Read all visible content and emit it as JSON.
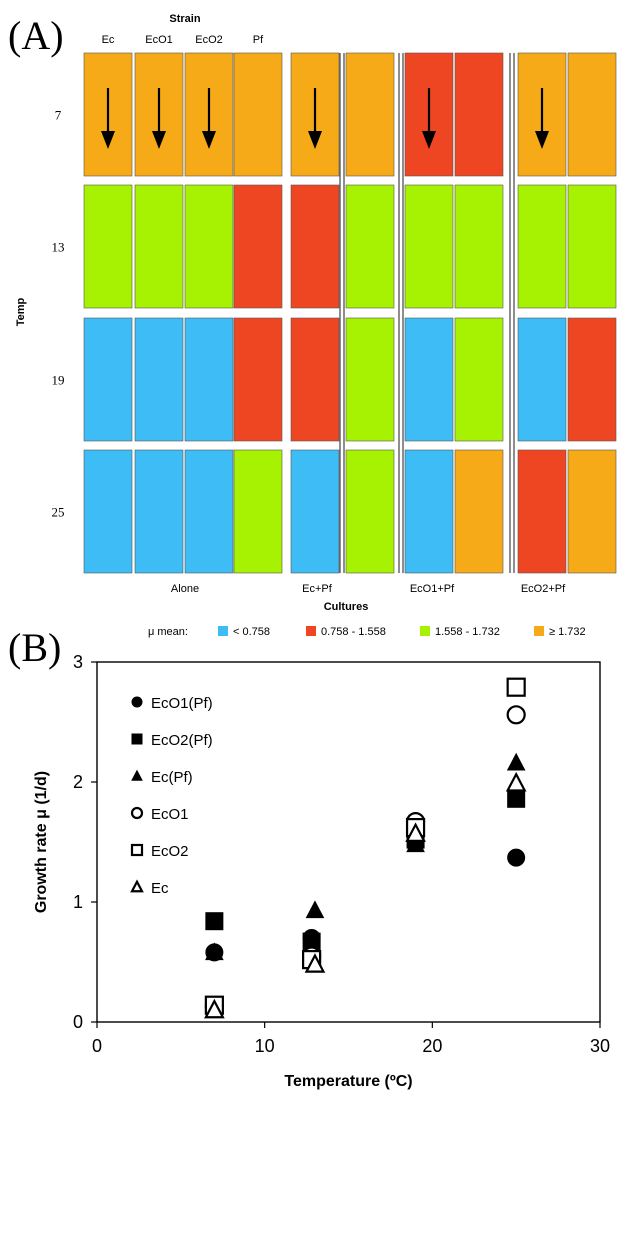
{
  "panel_a": {
    "label": "(A)",
    "strain_title": "Strain",
    "strain_labels": [
      "Ec",
      "EcO1",
      "EcO2",
      "Pf"
    ],
    "temp_title": "Temp",
    "temps": [
      "7",
      "13",
      "19",
      "25"
    ],
    "culture_groups": [
      "Alone",
      "Ec+Pf",
      "EcO1+Pf",
      "EcO2+Pf"
    ],
    "cultures_title": "Cultures",
    "legend_title": "μ mean:",
    "legend": [
      {
        "label": "< 0.758",
        "color": "#3dbcf5"
      },
      {
        "label": "0.758 - 1.558",
        "color": "#ee4523"
      },
      {
        "label": "1.558 - 1.732",
        "color": "#a7f102"
      },
      {
        "label": "≥ 1.732",
        "color": "#f6aa18"
      }
    ]
  },
  "panel_b": {
    "label": "(B)",
    "xlabel": "Temperature (ºC)",
    "ylabel": "Growth rate μ (1/d)",
    "xticks": [
      "0",
      "10",
      "20",
      "30"
    ],
    "yticks": [
      "0",
      "1",
      "2",
      "3"
    ],
    "legend": [
      "EcO1(Pf)",
      "EcO2(Pf)",
      "Ec(Pf)",
      "EcO1",
      "EcO2",
      "Ec"
    ]
  },
  "chart_data": [
    {
      "type": "heatmap",
      "title": "",
      "xlabel": "Cultures",
      "ylabel": "Temp",
      "strain_label": "Strain",
      "groups": [
        {
          "name": "Alone",
          "strains": [
            "Ec",
            "EcO1",
            "EcO2",
            "Pf"
          ]
        },
        {
          "name": "Ec+Pf",
          "strains": [
            "Ec",
            "Pf"
          ]
        },
        {
          "name": "EcO1+Pf",
          "strains": [
            "EcO1",
            "Pf"
          ]
        },
        {
          "name": "EcO2+Pf",
          "strains": [
            "EcO2",
            "Pf"
          ]
        }
      ],
      "rows": [
        "7",
        "13",
        "19",
        "25"
      ],
      "categories": [
        "< 0.758",
        "0.758 - 1.558",
        "1.558 - 1.732",
        "≥ 1.732"
      ],
      "category_colors": [
        "#3dbcf5",
        "#ee4523",
        "#a7f102",
        "#f6aa18"
      ],
      "cells": [
        [
          3,
          3,
          3,
          3,
          3,
          3,
          1,
          1,
          3,
          3
        ],
        [
          2,
          2,
          2,
          1,
          1,
          2,
          2,
          2,
          2,
          2
        ],
        [
          0,
          0,
          0,
          1,
          1,
          2,
          0,
          2,
          0,
          1
        ],
        [
          0,
          0,
          0,
          2,
          0,
          2,
          0,
          3,
          1,
          3
        ]
      ],
      "arrows": [
        [
          true,
          true,
          true,
          false,
          true,
          false,
          true,
          false,
          true,
          false
        ],
        [
          false,
          false,
          false,
          false,
          false,
          false,
          false,
          false,
          false,
          false
        ],
        [
          false,
          false,
          false,
          false,
          false,
          false,
          false,
          false,
          false,
          false
        ],
        [
          false,
          false,
          false,
          false,
          false,
          false,
          false,
          false,
          false,
          false
        ]
      ]
    },
    {
      "type": "scatter",
      "title": "",
      "xlabel": "Temperature (ºC)",
      "ylabel": "Growth rate μ (1/d)",
      "xlim": [
        0,
        30
      ],
      "ylim": [
        0,
        3
      ],
      "grid": false,
      "legend_position": "top-left",
      "series": [
        {
          "name": "EcO1(Pf)",
          "marker": "circle",
          "filled": true,
          "x": [
            7,
            12.8,
            19,
            25
          ],
          "y": [
            0.58,
            0.7,
            1.52,
            1.37
          ]
        },
        {
          "name": "EcO2(Pf)",
          "marker": "square",
          "filled": true,
          "x": [
            7,
            12.8,
            19,
            25
          ],
          "y": [
            0.84,
            0.67,
            1.52,
            1.86
          ]
        },
        {
          "name": "Ec(Pf)",
          "marker": "triangle",
          "filled": true,
          "x": [
            7,
            13,
            19,
            25
          ],
          "y": [
            0.58,
            0.93,
            1.48,
            2.16
          ]
        },
        {
          "name": "EcO1",
          "marker": "circle",
          "filled": false,
          "x": [
            7,
            12.8,
            19,
            25
          ],
          "y": [
            0.13,
            0.55,
            1.67,
            2.56
          ]
        },
        {
          "name": "EcO2",
          "marker": "square",
          "filled": false,
          "x": [
            7,
            12.8,
            19,
            25
          ],
          "y": [
            0.14,
            0.52,
            1.62,
            2.79
          ]
        },
        {
          "name": "Ec",
          "marker": "triangle",
          "filled": false,
          "x": [
            7,
            13,
            19,
            25
          ],
          "y": [
            0.1,
            0.48,
            1.57,
            1.99
          ]
        }
      ]
    }
  ]
}
